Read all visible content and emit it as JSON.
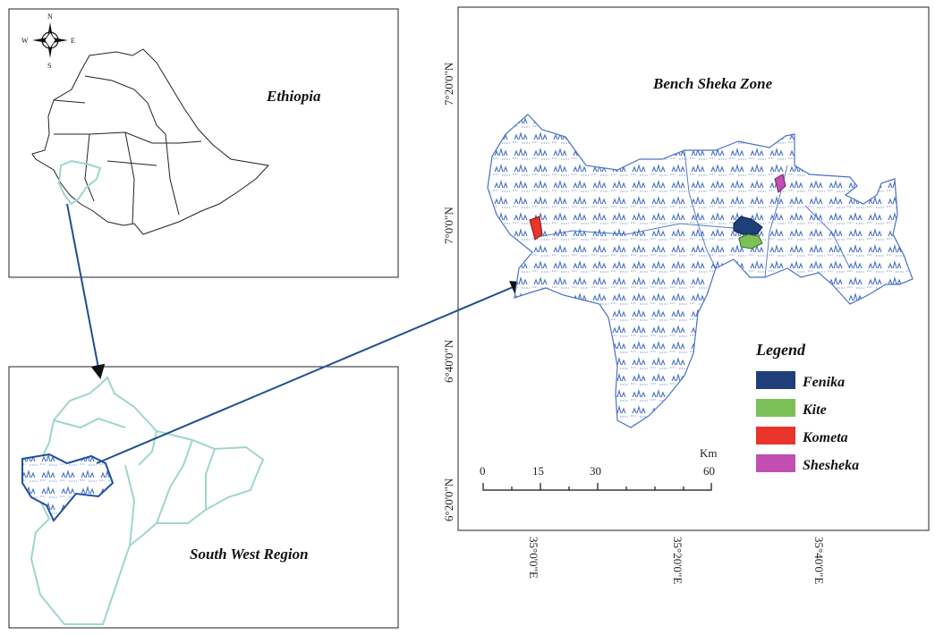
{
  "map": {
    "ethiopia_label": "Ethiopia",
    "region_label": "South West Region",
    "zone_label": "Bench Sheka Zone",
    "compass": {
      "n": "N",
      "s": "S",
      "e": "E",
      "w": "W"
    },
    "lat_labels": [
      "7°20'0\"N",
      "7°0'0\"N",
      "6°40'0\"N",
      "6°20'0\"N"
    ],
    "lon_labels": [
      "35°0'0\"E",
      "35°20'0\"E",
      "35°40'0\"E"
    ],
    "scale": {
      "ticks": [
        "0",
        "15",
        "30",
        "60"
      ],
      "unit": "Km"
    },
    "legend": {
      "title": "Legend",
      "items": [
        {
          "label": "Fenika",
          "color": "#1f3f7a"
        },
        {
          "label": "Kite",
          "color": "#7cc05a"
        },
        {
          "label": "Kometa",
          "color": "#e8342a"
        },
        {
          "label": "Shesheka",
          "color": "#c14fb2"
        }
      ]
    },
    "colors": {
      "region_outline": "#9ed6cf",
      "zone_outline": "#1f4f9c",
      "arrow": "#1f4f8f",
      "zone_fill_pattern": "#4a72c4"
    }
  }
}
